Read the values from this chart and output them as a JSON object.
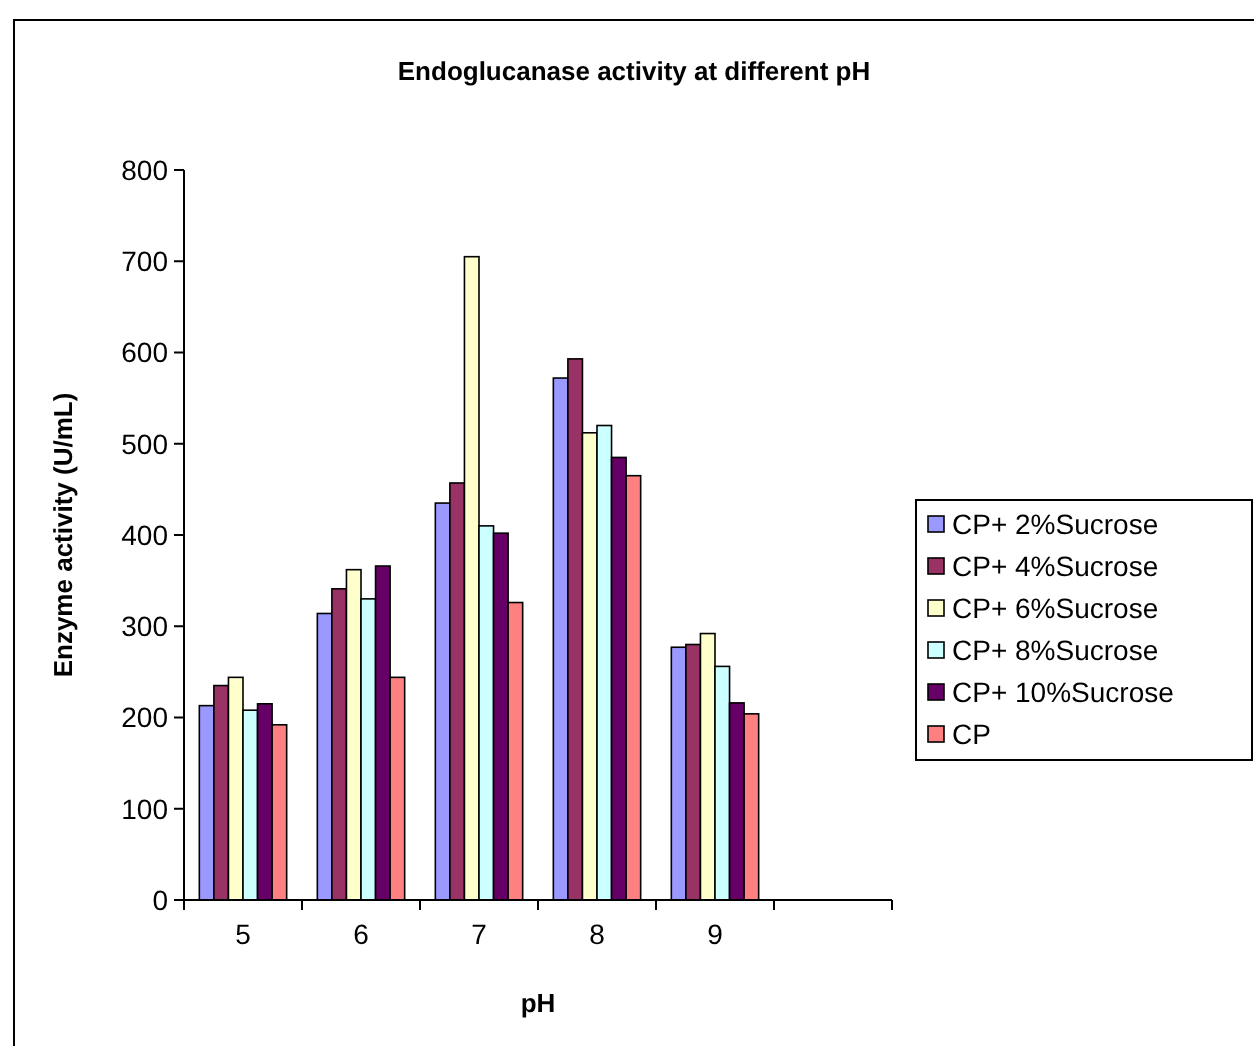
{
  "chart_data": {
    "type": "bar",
    "title": "Endoglucanase activity at different pH",
    "xlabel": "pH",
    "ylabel": "Enzyme activity (U/mL)",
    "categories": [
      "5",
      "6",
      "7",
      "8",
      "9",
      null
    ],
    "series": [
      {
        "name": "CP+ 2%Sucrose",
        "color": "#9999ff",
        "values": [
          213,
          314,
          435,
          572,
          277,
          null
        ]
      },
      {
        "name": "CP+ 4%Sucrose",
        "color": "#993366",
        "values": [
          235,
          341,
          457,
          593,
          280,
          null
        ]
      },
      {
        "name": "CP+ 6%Sucrose",
        "color": "#ffffcc",
        "values": [
          244,
          362,
          705,
          512,
          292,
          null
        ]
      },
      {
        "name": "CP+ 8%Sucrose",
        "color": "#ccffff",
        "values": [
          208,
          330,
          410,
          520,
          256,
          null
        ]
      },
      {
        "name": "CP+ 10%Sucrose",
        "color": "#660066",
        "values": [
          215,
          366,
          402,
          485,
          216,
          null
        ]
      },
      {
        "name": "CP",
        "color": "#ff8080",
        "values": [
          192,
          244,
          326,
          465,
          204,
          null
        ]
      }
    ],
    "ylim": [
      0,
      800
    ],
    "yticks": [
      0,
      100,
      200,
      300,
      400,
      500,
      600,
      700,
      800
    ],
    "grid": false,
    "legend": "right"
  }
}
